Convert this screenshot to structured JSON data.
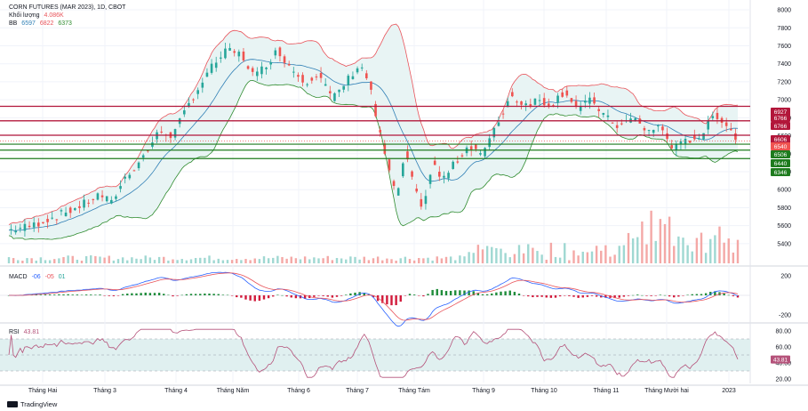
{
  "header": {
    "title": "CORN FUTURES (MAR 2023), 1D, CBOT",
    "volume_label": "Khối lượng",
    "volume_value": "4.086K",
    "bb_label": "BB",
    "bb_values": [
      "6597",
      "6822",
      "6373"
    ],
    "macd_label": "MACD",
    "macd_values": [
      "-06",
      "-05",
      "01"
    ],
    "rsi_label": "RSI",
    "rsi_value": "43.81"
  },
  "colors": {
    "up": "#26a69a",
    "down": "#ef5350",
    "bb_upper": "#e8535a",
    "bb_lower": "#2e8b2e",
    "bb_basis": "#2f7fb5",
    "bb_fill": "#e8f4f4",
    "resistance": "#b2163a",
    "support": "#1e7b1e",
    "macd_line": "#2962ff",
    "signal_line": "#e8535a",
    "rsi_line": "#b5527a",
    "rsi_band": "#e0f0f0"
  },
  "footer": {
    "brand": "TradingView"
  },
  "chart_data": {
    "type": "candlestick",
    "title": "CORN FUTURES (MAR 2023), 1D, CBOT",
    "price_axis_ticks": [
      "8000",
      "7800",
      "7600",
      "7400",
      "7200",
      "7000",
      "6800",
      "6600",
      "6400",
      "6200",
      "6000",
      "5800",
      "5600",
      "5400"
    ],
    "ylim": [
      5300,
      8050
    ],
    "time_axis_ticks": [
      "Tháng Hai",
      "Tháng 3",
      "Tháng 4",
      "Tháng Năm",
      "Tháng 6",
      "Tháng 7",
      "Tháng Tám",
      "Tháng 9",
      "Tháng 10",
      "Tháng 11",
      "Tháng Mười hai",
      "2023"
    ],
    "close_path": [
      [
        0,
        5550
      ],
      [
        10,
        5600
      ],
      [
        20,
        5700
      ],
      [
        30,
        5800
      ],
      [
        40,
        5950
      ],
      [
        45,
        5850
      ],
      [
        50,
        6100
      ],
      [
        60,
        6400
      ],
      [
        66,
        6650
      ],
      [
        72,
        6600
      ],
      [
        80,
        7000
      ],
      [
        90,
        7400
      ],
      [
        96,
        7550
      ],
      [
        102,
        7500
      ],
      [
        108,
        7250
      ],
      [
        113,
        7400
      ],
      [
        118,
        7550
      ],
      [
        124,
        7350
      ],
      [
        130,
        7200
      ],
      [
        136,
        7300
      ],
      [
        142,
        7000
      ],
      [
        148,
        7200
      ],
      [
        154,
        7400
      ],
      [
        158,
        7200
      ],
      [
        162,
        6700
      ],
      [
        166,
        6300
      ],
      [
        170,
        5900
      ],
      [
        174,
        6400
      ],
      [
        178,
        6000
      ],
      [
        182,
        5800
      ],
      [
        186,
        6300
      ],
      [
        190,
        6100
      ],
      [
        196,
        6300
      ],
      [
        202,
        6500
      ],
      [
        208,
        6400
      ],
      [
        214,
        6700
      ],
      [
        220,
        7050
      ],
      [
        226,
        6950
      ],
      [
        232,
        7000
      ],
      [
        238,
        6950
      ],
      [
        244,
        7100
      ],
      [
        250,
        6900
      ],
      [
        256,
        7000
      ],
      [
        262,
        6800
      ],
      [
        268,
        6700
      ],
      [
        274,
        6800
      ],
      [
        280,
        6650
      ],
      [
        286,
        6700
      ],
      [
        292,
        6450
      ],
      [
        298,
        6550
      ],
      [
        304,
        6600
      ],
      [
        310,
        6850
      ],
      [
        316,
        6700
      ],
      [
        320,
        6540
      ]
    ],
    "levels": [
      {
        "label": "6927",
        "value": 6927,
        "kind": "resistance"
      },
      {
        "label": "6766",
        "value": 6766,
        "kind": "resistance"
      },
      {
        "label": "6766",
        "value": 6766,
        "kind": "resistance"
      },
      {
        "label": "6606",
        "value": 6606,
        "kind": "resistance"
      },
      {
        "label": "6540",
        "value": 6540,
        "kind": "current"
      },
      {
        "label": "6506",
        "value": 6506,
        "kind": "support"
      },
      {
        "label": "6440",
        "value": 6440,
        "kind": "support"
      },
      {
        "label": "6346",
        "value": 6346,
        "kind": "support"
      }
    ],
    "bollinger": {
      "upper": 6822,
      "basis": 6597,
      "lower": 6373
    },
    "macd": {
      "axis_ticks": [
        "200",
        "-200"
      ],
      "values": [
        -6,
        -5,
        1
      ]
    },
    "rsi": {
      "axis_ticks": [
        "80.00",
        "60.00",
        "40.00",
        "20.00"
      ],
      "value": 43.81,
      "band": [
        30,
        70
      ]
    }
  }
}
